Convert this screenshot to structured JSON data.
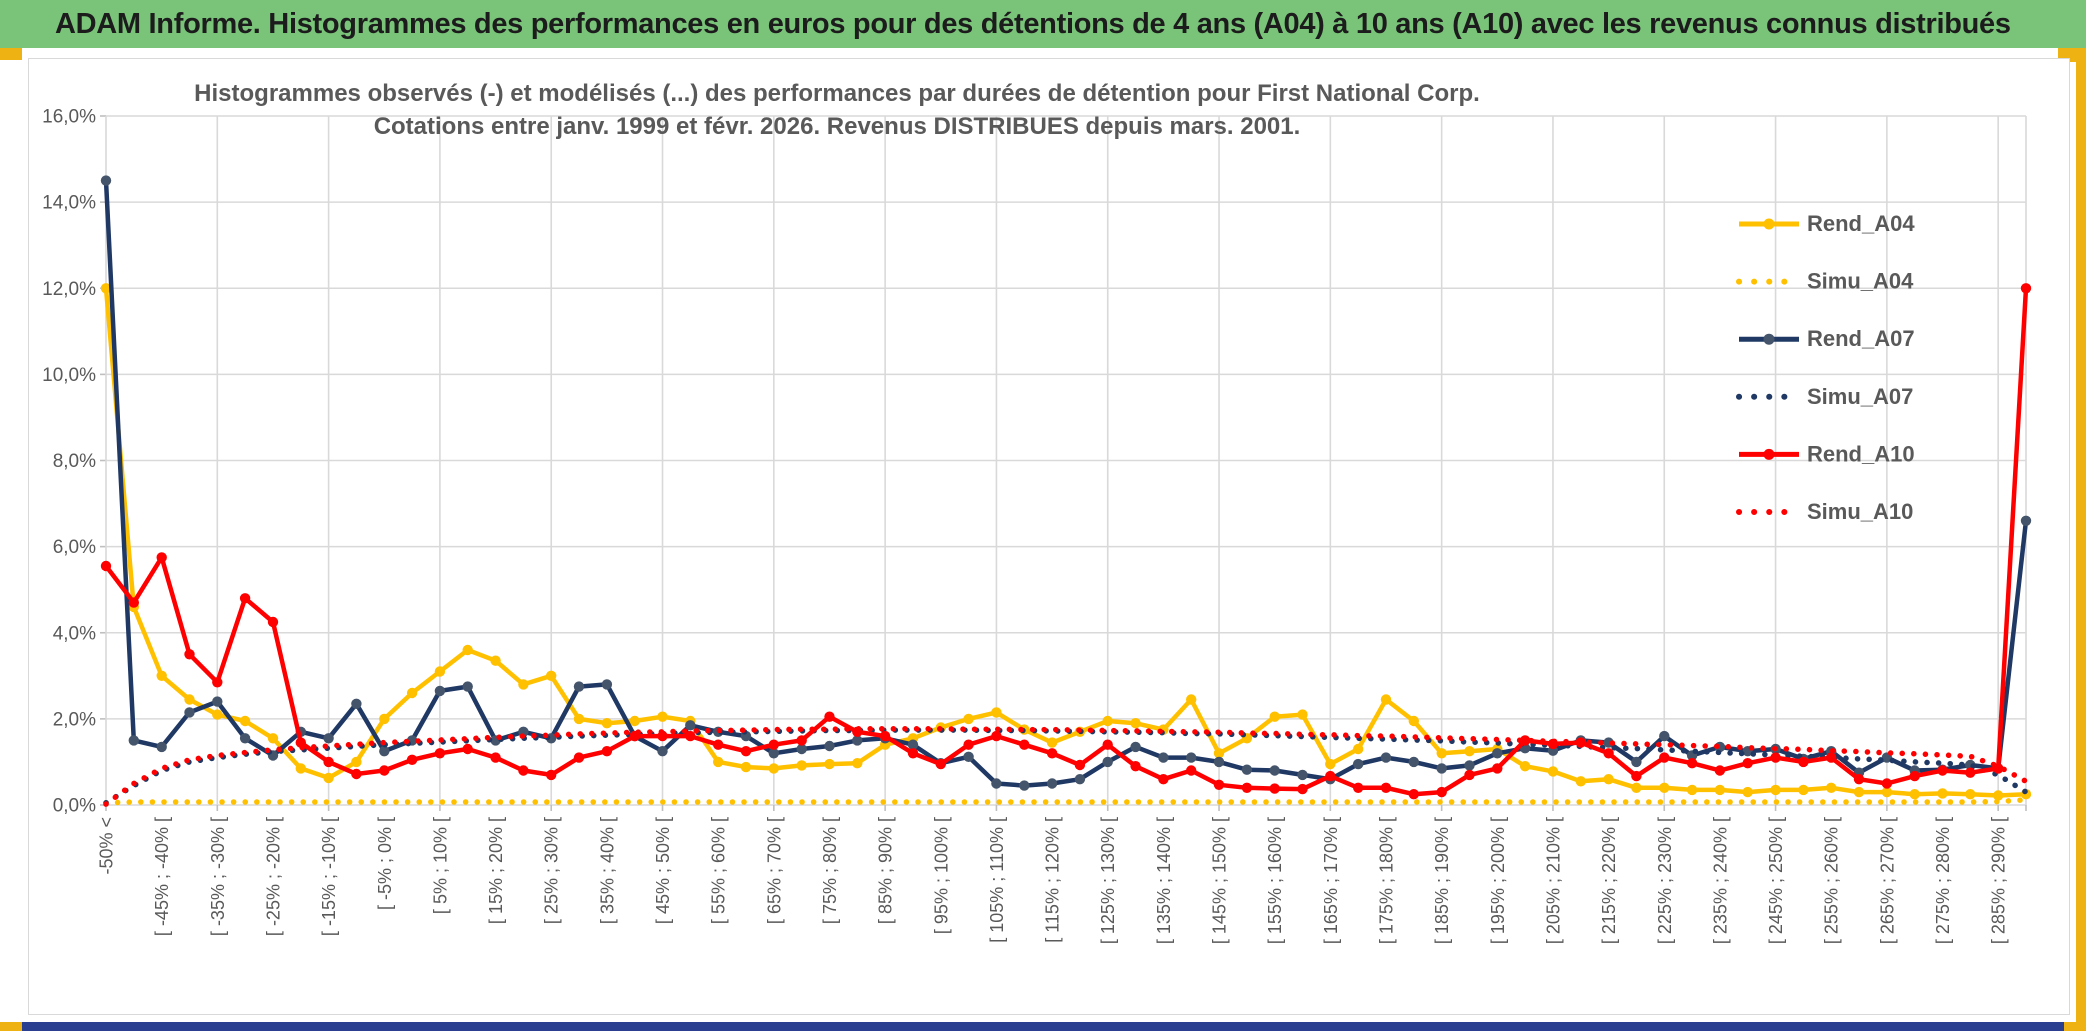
{
  "window": {
    "header_title": "ADAM Informe. Histogrammes des performances en euros pour des détentions de 4 ans (A04) à 10 ans (A10) avec les revenus connus distribués",
    "colors": {
      "header_green": "#7AC47A",
      "accent_gold": "#EEB312",
      "footer_blue": "#2B3F90",
      "grid": "#D9D9D9",
      "axis_text": "#595959",
      "title_text": "#595959"
    }
  },
  "chart_data": {
    "type": "line",
    "title_line1": "Histogrammes observés (-) et modélisés (...) des performances par durées de détention pour First National Corp.",
    "title_line2": "Cotations entre janv. 1999 et févr. 2026. Revenus DISTRIBUES depuis mars. 2001.",
    "ylabel": "",
    "xlabel": "",
    "ylim": [
      0,
      16
    ],
    "y_tick_labels": [
      "0,0%",
      "2,0%",
      "4,0%",
      "6,0%",
      "8,0%",
      "10,0%",
      "12,0%",
      "14,0%",
      "16,0%"
    ],
    "bins": 70,
    "x_label_every": 2,
    "grid_every_bins": 4,
    "legend_position": "right-inside",
    "x_labels": [
      "-50% <",
      "[ -45% ; -40% [",
      "[ -35% ; -30% [",
      "[ -25% ; -20% [",
      "[ -15% ; -10% [",
      "[ -5% ; 0% [",
      "[ 5% ; 10% [",
      "[ 15% ; 20% [",
      "[ 25% ; 30% [",
      "[ 35% ; 40% [",
      "[ 45% ; 50% [",
      "[ 55% ; 60% [",
      "[ 65% ; 70% [",
      "[ 75% ; 80% [",
      "[ 85% ; 90% [",
      "[ 95% ; 100% [",
      "[ 105% ; 110% [",
      "[ 115% ; 120% [",
      "[ 125% ; 130% [",
      "[ 135% ; 140% [",
      "[ 145% ; 150% [",
      "[ 155% ; 160% [",
      "[ 165% ; 170% [",
      "[ 175% ; 180% [",
      "[ 185% ; 190% [",
      "[ 195% ; 200% [",
      "[ 205% ; 210% [",
      "[ 215% ; 220% [",
      "[ 225% ; 230% [",
      "[ 235% ; 240% [",
      "[ 245% ; 250% [",
      "[ 255% ; 260% [",
      "[ 265% ; 270% [",
      "[ 275% ; 280% [",
      "[ 285% ; 290% ["
    ],
    "series": [
      {
        "name": "Rend_A04",
        "style": "solid",
        "color": "#FFC000",
        "marker": "#FFC000",
        "values": [
          12.0,
          4.6,
          3.0,
          2.45,
          2.1,
          1.95,
          1.55,
          0.85,
          0.63,
          1.0,
          2.0,
          2.6,
          3.1,
          3.6,
          3.35,
          2.8,
          3.0,
          2.0,
          1.9,
          1.95,
          2.05,
          1.95,
          1.0,
          0.88,
          0.85,
          0.92,
          0.95,
          0.97,
          1.4,
          1.55,
          1.8,
          2.0,
          2.15,
          1.75,
          1.45,
          1.7,
          1.95,
          1.9,
          1.75,
          2.45,
          1.2,
          1.55,
          2.05,
          2.1,
          0.95,
          1.3,
          2.45,
          1.95,
          1.2,
          1.25,
          1.3,
          0.9,
          0.78,
          0.55,
          0.6,
          0.4,
          0.4,
          0.35,
          0.35,
          0.3,
          0.35,
          0.35,
          0.4,
          0.3,
          0.3,
          0.25,
          0.27,
          0.25,
          0.22,
          0.25
        ]
      },
      {
        "name": "Simu_A04",
        "style": "dotted",
        "color": "#FFC000",
        "values": [
          0.05,
          0.07,
          0.07,
          0.07,
          0.07,
          0.07,
          0.07,
          0.07,
          0.07,
          0.07,
          0.07,
          0.07,
          0.07,
          0.07,
          0.07,
          0.07,
          0.07,
          0.07,
          0.07,
          0.07,
          0.07,
          0.07,
          0.07,
          0.07,
          0.07,
          0.07,
          0.07,
          0.07,
          0.07,
          0.07,
          0.07,
          0.07,
          0.07,
          0.07,
          0.07,
          0.07,
          0.07,
          0.07,
          0.07,
          0.07,
          0.07,
          0.07,
          0.07,
          0.07,
          0.07,
          0.07,
          0.07,
          0.07,
          0.07,
          0.07,
          0.07,
          0.07,
          0.07,
          0.07,
          0.07,
          0.07,
          0.07,
          0.07,
          0.07,
          0.07,
          0.07,
          0.07,
          0.07,
          0.07,
          0.07,
          0.07,
          0.07,
          0.07,
          0.08,
          0.12
        ]
      },
      {
        "name": "Rend_A07",
        "style": "solid",
        "color": "#1F3864",
        "marker": "#44546A",
        "values": [
          14.5,
          1.5,
          1.35,
          2.15,
          2.4,
          1.55,
          1.15,
          1.7,
          1.55,
          2.35,
          1.25,
          1.5,
          2.65,
          2.75,
          1.5,
          1.7,
          1.55,
          2.75,
          2.8,
          1.6,
          1.25,
          1.85,
          1.7,
          1.6,
          1.2,
          1.3,
          1.37,
          1.5,
          1.55,
          1.4,
          0.97,
          1.12,
          0.5,
          0.45,
          0.5,
          0.6,
          1.0,
          1.35,
          1.1,
          1.1,
          1.0,
          0.82,
          0.8,
          0.7,
          0.6,
          0.95,
          1.1,
          1.0,
          0.85,
          0.92,
          1.2,
          1.32,
          1.26,
          1.5,
          1.45,
          1.0,
          1.6,
          1.15,
          1.35,
          1.25,
          1.3,
          1.07,
          1.25,
          0.75,
          1.1,
          0.8,
          0.82,
          0.93,
          0.85,
          6.6
        ]
      },
      {
        "name": "Simu_A07",
        "style": "dotted",
        "color": "#1F3864",
        "values": [
          0.05,
          0.45,
          0.8,
          1.0,
          1.1,
          1.18,
          1.24,
          1.28,
          1.32,
          1.36,
          1.4,
          1.43,
          1.46,
          1.49,
          1.52,
          1.55,
          1.57,
          1.6,
          1.62,
          1.64,
          1.66,
          1.68,
          1.69,
          1.7,
          1.71,
          1.72,
          1.73,
          1.73,
          1.74,
          1.74,
          1.74,
          1.74,
          1.73,
          1.73,
          1.72,
          1.71,
          1.7,
          1.69,
          1.68,
          1.66,
          1.65,
          1.63,
          1.61,
          1.59,
          1.57,
          1.55,
          1.53,
          1.51,
          1.49,
          1.46,
          1.44,
          1.41,
          1.39,
          1.36,
          1.33,
          1.31,
          1.28,
          1.25,
          1.22,
          1.19,
          1.16,
          1.13,
          1.1,
          1.07,
          1.04,
          1.0,
          0.97,
          0.93,
          0.7,
          0.3
        ]
      },
      {
        "name": "Rend_A10",
        "style": "solid",
        "color": "#FF0000",
        "marker": "#FF0000",
        "values": [
          5.55,
          4.7,
          5.75,
          3.5,
          2.85,
          4.8,
          4.25,
          1.45,
          1.0,
          0.72,
          0.8,
          1.05,
          1.2,
          1.3,
          1.1,
          0.8,
          0.7,
          1.1,
          1.25,
          1.6,
          1.6,
          1.6,
          1.4,
          1.25,
          1.4,
          1.5,
          2.05,
          1.7,
          1.6,
          1.2,
          0.95,
          1.4,
          1.6,
          1.4,
          1.2,
          0.93,
          1.4,
          0.9,
          0.6,
          0.8,
          0.47,
          0.4,
          0.38,
          0.37,
          0.67,
          0.4,
          0.4,
          0.25,
          0.3,
          0.7,
          0.85,
          1.5,
          1.42,
          1.45,
          1.2,
          0.67,
          1.1,
          0.97,
          0.8,
          0.97,
          1.1,
          1.0,
          1.1,
          0.6,
          0.5,
          0.67,
          0.8,
          0.75,
          0.85,
          12.0
        ]
      },
      {
        "name": "Simu_A10",
        "style": "dotted",
        "color": "#FF0000",
        "values": [
          0.02,
          0.5,
          0.85,
          1.05,
          1.15,
          1.22,
          1.28,
          1.33,
          1.37,
          1.41,
          1.45,
          1.48,
          1.51,
          1.54,
          1.57,
          1.6,
          1.62,
          1.65,
          1.67,
          1.69,
          1.7,
          1.72,
          1.73,
          1.74,
          1.75,
          1.76,
          1.76,
          1.77,
          1.77,
          1.77,
          1.77,
          1.76,
          1.76,
          1.75,
          1.75,
          1.74,
          1.73,
          1.72,
          1.71,
          1.7,
          1.69,
          1.67,
          1.66,
          1.64,
          1.63,
          1.61,
          1.6,
          1.58,
          1.56,
          1.54,
          1.52,
          1.5,
          1.48,
          1.46,
          1.44,
          1.42,
          1.4,
          1.38,
          1.36,
          1.33,
          1.31,
          1.29,
          1.26,
          1.24,
          1.21,
          1.19,
          1.16,
          1.13,
          0.9,
          0.55
        ]
      }
    ]
  }
}
